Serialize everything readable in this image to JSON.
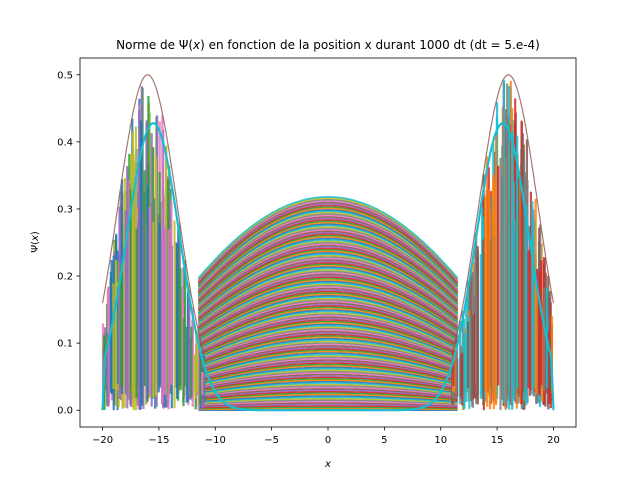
{
  "chart_data": {
    "type": "line",
    "title": "Norme de Ψ(x) en fonction de la position x durant 1000 dt (dt = 5.e-4)",
    "title_parts": {
      "prefix": "Norme de Ψ(",
      "var": "x",
      "suffix": ") en fonction de la position x durant 1000 dt (dt = 5.e-4)"
    },
    "xlabel": "x",
    "ylabel": "Ψ(x)",
    "ylabel_parts": {
      "prefix": "Ψ(",
      "var": "x",
      "suffix": ")"
    },
    "xlim": [
      -22,
      22
    ],
    "ylim": [
      -0.025,
      0.525
    ],
    "xticks": [
      -20,
      -15,
      -10,
      -5,
      0,
      5,
      10,
      15,
      20
    ],
    "xtick_labels": [
      "−20",
      "−15",
      "−10",
      "−5",
      "0",
      "5",
      "10",
      "15",
      "20"
    ],
    "yticks": [
      0.0,
      0.1,
      0.2,
      0.3,
      0.4,
      0.5
    ],
    "ytick_labels": [
      "0.0",
      "0.1",
      "0.2",
      "0.3",
      "0.4",
      "0.5"
    ],
    "grid": false,
    "legend": "none",
    "series_summary": {
      "count_described": "1000 time steps, one curve per step",
      "initial_state": {
        "x": [
          -20,
          -18,
          -16,
          -15.5,
          -14,
          -12,
          -10,
          -8,
          -6,
          -4,
          -2,
          0,
          2,
          4,
          6,
          8,
          10,
          12,
          14,
          15.5,
          16,
          18,
          20
        ],
        "y": [
          0.0,
          0.28,
          0.425,
          0.428,
          0.37,
          0.2,
          0.08,
          0.025,
          0.006,
          0.001,
          0.0,
          0.0,
          0.0,
          0.001,
          0.006,
          0.025,
          0.08,
          0.2,
          0.37,
          0.428,
          0.425,
          0.28,
          0.0
        ]
      },
      "envelope_center_peak": {
        "x": 0,
        "y": 0.318
      },
      "envelope_side_peaks": [
        {
          "x": -16,
          "y": 0.5
        },
        {
          "x": 16,
          "y": 0.5
        }
      ]
    },
    "colors": {
      "highlight": "#17becf",
      "palette": [
        "#1f77b4",
        "#ff7f0e",
        "#2ca02c",
        "#d62728",
        "#9467bd",
        "#8c564b",
        "#e377c2",
        "#7f7f7f",
        "#bcbd22",
        "#17becf"
      ]
    }
  }
}
